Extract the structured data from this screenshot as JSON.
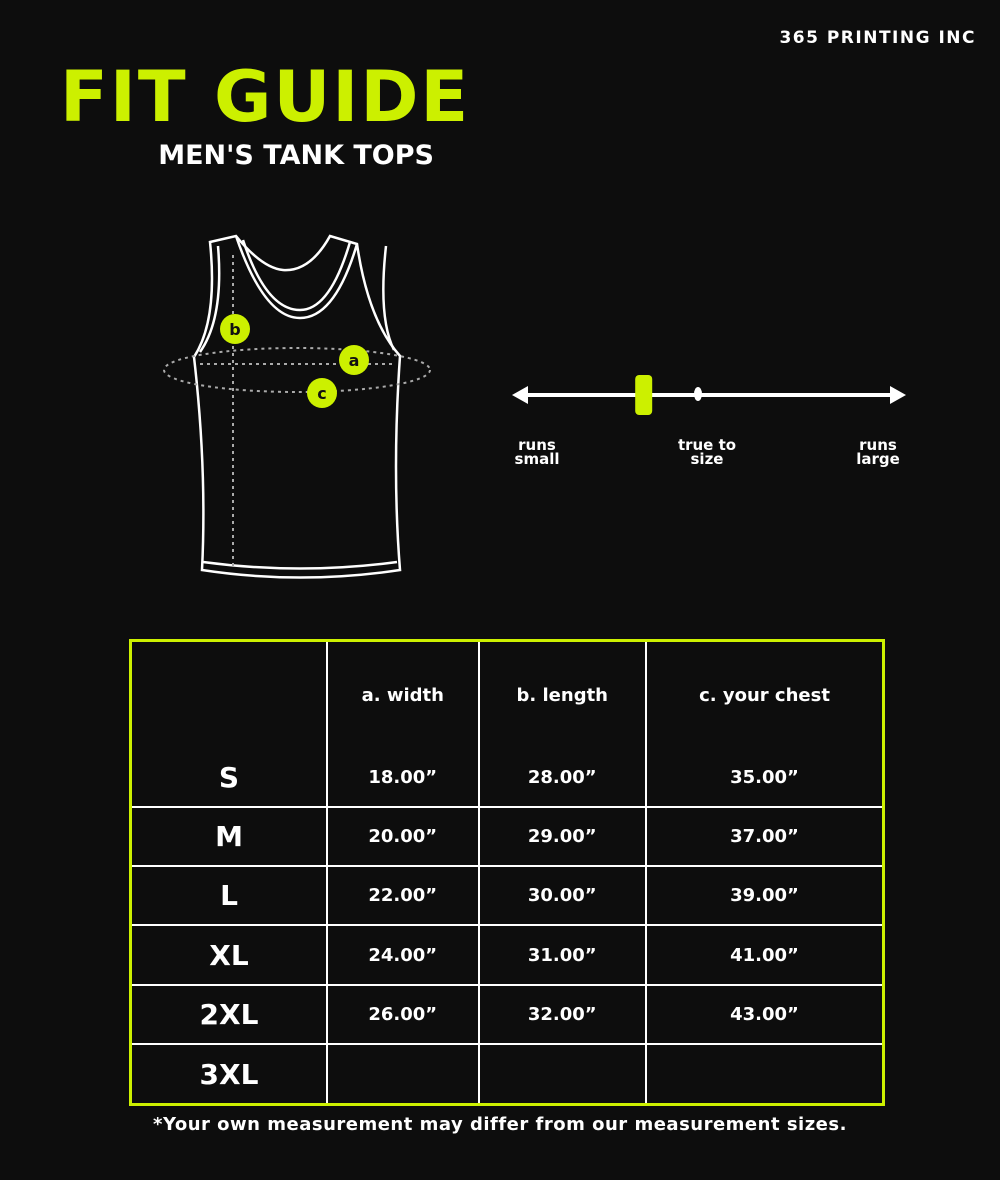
{
  "brand": "365 PRINTING INC",
  "title": "FIT GUIDE",
  "subtitle": "MEN'S TANK TOPS",
  "accent_color": "#ccf000",
  "diagram": {
    "markers": [
      "a",
      "b",
      "c"
    ]
  },
  "fit_scale": {
    "left_label": "runs small",
    "center_label": "true to size",
    "right_label": "runs large",
    "position_fraction": 0.33
  },
  "table": {
    "headers": [
      "",
      "a. width",
      "b. length",
      "c. your chest"
    ],
    "rows": [
      [
        "S",
        "18.00”",
        "28.00”",
        "35.00”"
      ],
      [
        "M",
        "20.00”",
        "29.00”",
        "37.00”"
      ],
      [
        "L",
        "22.00”",
        "30.00”",
        "39.00”"
      ],
      [
        "XL",
        "24.00”",
        "31.00”",
        "41.00”"
      ],
      [
        "2XL",
        "26.00”",
        "32.00”",
        "43.00”"
      ],
      [
        "3XL",
        "",
        "",
        ""
      ]
    ]
  },
  "footnote": "*Your own measurement may differ from our measurement sizes."
}
